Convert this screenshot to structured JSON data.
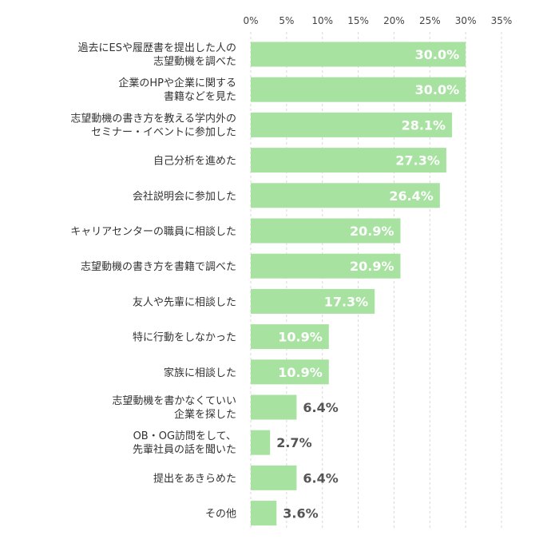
{
  "chart_data": {
    "type": "bar",
    "orientation": "horizontal",
    "categories": [
      [
        "過去にESや履歴書を提出した人の",
        "志望動機を調べた"
      ],
      [
        "企業のHPや企業に関する",
        "書籍などを見た"
      ],
      [
        "志望動機の書き方を教える学内外の",
        "セミナー・イベントに参加した"
      ],
      [
        "自己分析を進めた"
      ],
      [
        "会社説明会に参加した"
      ],
      [
        "キャリアセンターの職員に相談した"
      ],
      [
        "志望動機の書き方を書籍で調べた"
      ],
      [
        "友人や先輩に相談した"
      ],
      [
        "特に行動をしなかった"
      ],
      [
        "家族に相談した"
      ],
      [
        "志望動機を書かなくていい",
        "企業を探した"
      ],
      [
        "OB・OG訪問をして、",
        "先輩社員の話を聞いた"
      ],
      [
        "提出をあきらめた"
      ],
      [
        "その他"
      ]
    ],
    "values": [
      30.0,
      30.0,
      28.1,
      27.3,
      26.4,
      20.9,
      20.9,
      17.3,
      10.9,
      10.9,
      6.4,
      2.7,
      6.4,
      3.6
    ],
    "value_labels": [
      "30.0%",
      "30.0%",
      "28.1%",
      "27.3%",
      "26.4%",
      "20.9%",
      "20.9%",
      "17.3%",
      "10.9%",
      "10.9%",
      "6.4%",
      "2.7%",
      "6.4%",
      "3.6%"
    ],
    "xlim": [
      0,
      35
    ],
    "ticks": [
      "0%",
      "5%",
      "10%",
      "15%",
      "20%",
      "25%",
      "30%",
      "35%"
    ],
    "axis_position": "top",
    "grid": true,
    "bar_color": "#a8e2a1",
    "label_inside_color": "#ffffff",
    "label_outside_color": "#555555"
  }
}
